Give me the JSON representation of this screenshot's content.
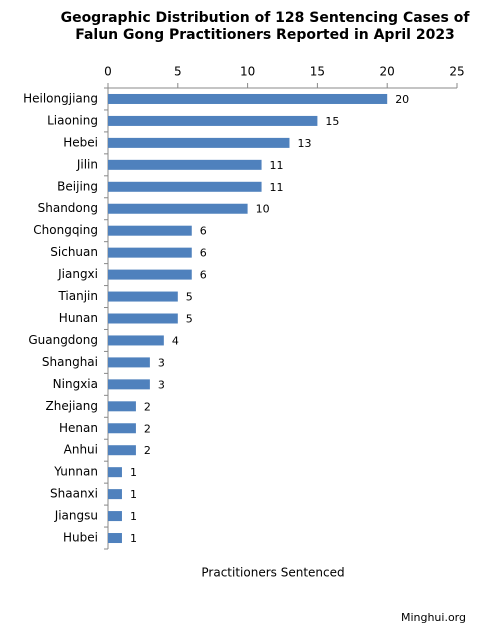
{
  "chart_data": {
    "type": "hbar",
    "title": [
      "Geographic Distribution of 128 Sentencing Cases of",
      "Falun Gong Practitioners Reported in April 2023"
    ],
    "categories": [
      "Heilongjiang",
      "Liaoning",
      "Hebei",
      "Jilin",
      "Beijing",
      "Shandong",
      "Chongqing",
      "Sichuan",
      "Jiangxi",
      "Tianjin",
      "Hunan",
      "Guangdong",
      "Shanghai",
      "Ningxia",
      "Zhejiang",
      "Henan",
      "Anhui",
      "Yunnan",
      "Shaanxi",
      "Jiangsu",
      "Hubei"
    ],
    "values": [
      20,
      15,
      13,
      11,
      11,
      10,
      6,
      6,
      6,
      5,
      5,
      4,
      3,
      3,
      2,
      2,
      2,
      1,
      1,
      1,
      1
    ],
    "color": "#4f81bd",
    "xlim": [
      0,
      25
    ],
    "xticks": [
      0,
      5,
      10,
      15,
      20,
      25
    ],
    "x_label": "Practitioners Sentenced",
    "source": "Minghui.org"
  }
}
